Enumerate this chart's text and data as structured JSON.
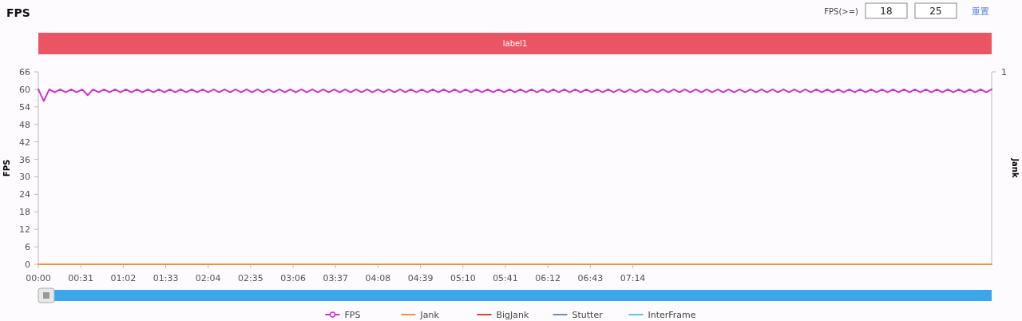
{
  "chart_data": {
    "type": "line",
    "title": "FPS",
    "ylabel": "FPS",
    "y2label": "Jank",
    "annotations": [
      "FPS(>=)",
      "18",
      "25",
      "重置",
      "1",
      "label1"
    ],
    "x": [
      0,
      4,
      8,
      12,
      16,
      20,
      24,
      28,
      32,
      36,
      40,
      44,
      48,
      52,
      56,
      60,
      64,
      68,
      72,
      76,
      80,
      84,
      88,
      92,
      96,
      100,
      104,
      108,
      112,
      116,
      120,
      124,
      128,
      132,
      136,
      140,
      144,
      148,
      152,
      156,
      160,
      164,
      168,
      172,
      176,
      180,
      184,
      188,
      192,
      196,
      200,
      204,
      208,
      212,
      216,
      220,
      224,
      228,
      232,
      236,
      240,
      244,
      248,
      252,
      256,
      260,
      264,
      268,
      272,
      276,
      280,
      284,
      288,
      292,
      296,
      300,
      304,
      308,
      312,
      316,
      320,
      324,
      328,
      332,
      336,
      340,
      344,
      348,
      352,
      356,
      360,
      364,
      368,
      372,
      376,
      380,
      384,
      388,
      392,
      396,
      400,
      404,
      408,
      412,
      416,
      420,
      424,
      428,
      432,
      436,
      440,
      444,
      448,
      452,
      456,
      460,
      464,
      468,
      472,
      476,
      480,
      484,
      488,
      492,
      496,
      500,
      504,
      508,
      512,
      516,
      520,
      524,
      528,
      532,
      536,
      540,
      544,
      548,
      552,
      556,
      560,
      564,
      568,
      572,
      576,
      580,
      584,
      588,
      592,
      596,
      600,
      604,
      608,
      612,
      616,
      620,
      624,
      628,
      632,
      636,
      640,
      644,
      648,
      652,
      656,
      660,
      664,
      668,
      672,
      676,
      680,
      684,
      688,
      692,
      696
    ],
    "series": [
      {
        "name": "FPS",
        "color": "#c936c9",
        "values": [
          60,
          56,
          60,
          59,
          60,
          59,
          60,
          59,
          60,
          58,
          60,
          59,
          60,
          59,
          60,
          59,
          60,
          59,
          60,
          59,
          60,
          59,
          60,
          59,
          60,
          59,
          60,
          59,
          60,
          59,
          60,
          59,
          60,
          59,
          60,
          59,
          60,
          59,
          60,
          59,
          60,
          59,
          60,
          59,
          60,
          59,
          60,
          59,
          60,
          59,
          60,
          59,
          60,
          59,
          60,
          59,
          60,
          59,
          60,
          59,
          60,
          59,
          60,
          59,
          60,
          59,
          60,
          59,
          60,
          59,
          60,
          59,
          60,
          59,
          60,
          59,
          60,
          59,
          60,
          59,
          60,
          59,
          60,
          59,
          60,
          59,
          60,
          59,
          60,
          59,
          60,
          59,
          60,
          59,
          60,
          59,
          60,
          59,
          60,
          59,
          60,
          59,
          60,
          59,
          60,
          59,
          60,
          59,
          60,
          59,
          60,
          59,
          60,
          59,
          60,
          59,
          60,
          59,
          60,
          59,
          60,
          59,
          60,
          59,
          60,
          59,
          60,
          59,
          60,
          59,
          60,
          59,
          60,
          59,
          60,
          59,
          60,
          59,
          60,
          59,
          60,
          59,
          60,
          59,
          60,
          59,
          60,
          59,
          60,
          59,
          60,
          59,
          60,
          59,
          60,
          59,
          60,
          59,
          60,
          59,
          60,
          59,
          60,
          59,
          60,
          59,
          60,
          59,
          60,
          59,
          60,
          59,
          60,
          59,
          60
        ]
      },
      {
        "name": "Jank",
        "color": "#f0923a",
        "marker": "none",
        "x": [
          0,
          696
        ],
        "values": [
          0,
          0
        ]
      },
      {
        "name": "BigJank",
        "color": "#d9413b",
        "marker": "none",
        "values": [
          null,
          null,
          null,
          null,
          null,
          null,
          null,
          null,
          null,
          null,
          null,
          null,
          null,
          null,
          null,
          null,
          null,
          null,
          null,
          null,
          null,
          null,
          null,
          null,
          null,
          null,
          null,
          null,
          null,
          null,
          null,
          null,
          null,
          null,
          null,
          null,
          null,
          null,
          null,
          null,
          null,
          null,
          null,
          null,
          null,
          null,
          null,
          null,
          null,
          null,
          null,
          null,
          null,
          null,
          null,
          null,
          null,
          null,
          null,
          null,
          null,
          null,
          null,
          null,
          null,
          null,
          null,
          null,
          null,
          null,
          null,
          null,
          null,
          null,
          null,
          null,
          null,
          null,
          null,
          null,
          null,
          null,
          null,
          null,
          null,
          null,
          null,
          null,
          null,
          null,
          null,
          null,
          null,
          null,
          null,
          null,
          null,
          null,
          null,
          null,
          null,
          null,
          null,
          null,
          null,
          null,
          null,
          null,
          null,
          null,
          null,
          null,
          null,
          null,
          null,
          null,
          null,
          null,
          null,
          null,
          null,
          null,
          null,
          null,
          null,
          null,
          null,
          null,
          null,
          null,
          null,
          null,
          null,
          null,
          null,
          null,
          null,
          null,
          null,
          null,
          null,
          null,
          null,
          null,
          null,
          null,
          null,
          null,
          null,
          null,
          null,
          null,
          null,
          null,
          null,
          null,
          null,
          null,
          null,
          null,
          null,
          null,
          null,
          null,
          null,
          null,
          null,
          null,
          null,
          null,
          null,
          null,
          null,
          null,
          null
        ]
      },
      {
        "name": "Stutter",
        "color": "#6e8fb0",
        "marker": "none",
        "values": [
          null,
          null,
          null,
          null,
          null,
          null,
          null,
          null,
          null,
          null,
          null,
          null,
          null,
          null,
          null,
          null,
          null,
          null,
          null,
          null,
          null,
          null,
          null,
          null,
          null,
          null,
          null,
          null,
          null,
          null,
          null,
          null,
          null,
          null,
          null,
          null,
          null,
          null,
          null,
          null,
          null,
          null,
          null,
          null,
          null,
          null,
          null,
          null,
          null,
          null,
          null,
          null,
          null,
          null,
          null,
          null,
          null,
          null,
          null,
          null,
          null,
          null,
          null,
          null,
          null,
          null,
          null,
          null,
          null,
          null,
          null,
          null,
          null,
          null,
          null,
          null,
          null,
          null,
          null,
          null,
          null,
          null,
          null,
          null,
          null,
          null,
          null,
          null,
          null,
          null,
          null,
          null,
          null,
          null,
          null,
          null,
          null,
          null,
          null,
          null,
          null,
          null,
          null,
          null,
          null,
          null,
          null,
          null,
          null,
          null,
          null,
          null,
          null,
          null,
          null,
          null,
          null,
          null,
          null,
          null,
          null,
          null,
          null,
          null,
          null,
          null,
          null,
          null,
          null,
          null,
          null,
          null,
          null,
          null,
          null,
          null,
          null,
          null,
          null,
          null,
          null,
          null,
          null,
          null,
          null,
          null,
          null,
          null,
          null,
          null,
          null,
          null,
          null,
          null,
          null,
          null,
          null,
          null,
          null,
          null,
          null,
          null,
          null,
          null,
          null,
          null,
          null,
          null,
          null,
          null,
          null,
          null,
          null,
          null,
          null
        ]
      },
      {
        "name": "InterFrame",
        "color": "#5bc8d8",
        "marker": "none",
        "values": [
          null,
          null,
          null,
          null,
          null,
          null,
          null,
          null,
          null,
          null,
          null,
          null,
          null,
          null,
          null,
          null,
          null,
          null,
          null,
          null,
          null,
          null,
          null,
          null,
          null,
          null,
          null,
          null,
          null,
          null,
          null,
          null,
          null,
          null,
          null,
          null,
          null,
          null,
          null,
          null,
          null,
          null,
          null,
          null,
          null,
          null,
          null,
          null,
          null,
          null,
          null,
          null,
          null,
          null,
          null,
          null,
          null,
          null,
          null,
          null,
          null,
          null,
          null,
          null,
          null,
          null,
          null,
          null,
          null,
          null,
          null,
          null,
          null,
          null,
          null,
          null,
          null,
          null,
          null,
          null,
          null,
          null,
          null,
          null,
          null,
          null,
          null,
          null,
          null,
          null,
          null,
          null,
          null,
          null,
          null,
          null,
          null,
          null,
          null,
          null,
          null,
          null,
          null,
          null,
          null,
          null,
          null,
          null,
          null,
          null,
          null,
          null,
          null,
          null,
          null,
          null,
          null,
          null,
          null,
          null,
          null,
          null,
          null,
          null,
          null,
          null,
          null,
          null,
          null,
          null,
          null,
          null,
          null,
          null,
          null,
          null,
          null,
          null,
          null,
          null,
          null,
          null,
          null,
          null,
          null,
          null,
          null,
          null,
          null,
          null,
          null,
          null,
          null,
          null,
          null,
          null,
          null,
          null,
          null,
          null,
          null,
          null,
          null,
          null,
          null,
          null,
          null,
          null,
          null,
          null,
          null,
          null,
          null,
          null,
          null
        ]
      }
    ],
    "xlim": [
      0,
      696
    ],
    "xticks": [
      {
        "value": 0,
        "label": "00:00"
      },
      {
        "value": 31,
        "label": "00:31"
      },
      {
        "value": 62,
        "label": "01:02"
      },
      {
        "value": 93,
        "label": "01:33"
      },
      {
        "value": 124,
        "label": "02:04"
      },
      {
        "value": 155,
        "label": "02:35"
      },
      {
        "value": 186,
        "label": "03:06"
      },
      {
        "value": 217,
        "label": "03:37"
      },
      {
        "value": 248,
        "label": "04:08"
      },
      {
        "value": 279,
        "label": "04:39"
      },
      {
        "value": 310,
        "label": "05:10"
      },
      {
        "value": 341,
        "label": "05:41"
      },
      {
        "value": 372,
        "label": "06:12"
      },
      {
        "value": 403,
        "label": "06:43"
      },
      {
        "value": 434,
        "label": "07:14"
      }
    ],
    "ylim": [
      0,
      66
    ],
    "yticks": [
      0,
      6,
      12,
      18,
      24,
      30,
      36,
      42,
      48,
      54,
      60,
      66
    ],
    "line_style": "solid",
    "legend": "bottom",
    "grid": false
  }
}
